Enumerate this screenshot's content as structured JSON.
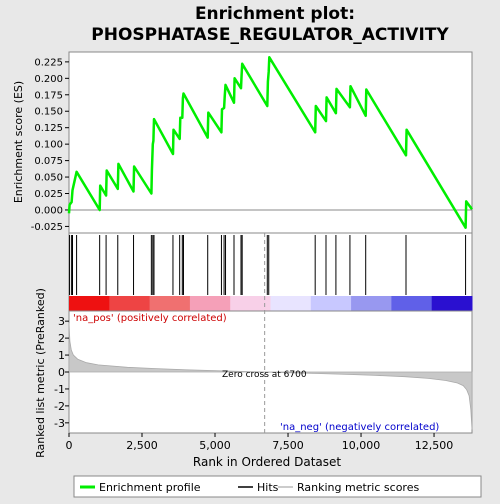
{
  "chart_data": {
    "type": "line",
    "title": "Enrichment plot:",
    "subtitle": "PHOSPHATASE_REGULATOR_ACTIVITY",
    "top_panel": {
      "ylabel": "Enrichment score (ES)",
      "ylim": [
        -0.035,
        0.24
      ],
      "yticks": [
        -0.025,
        0.0,
        0.025,
        0.05,
        0.075,
        0.1,
        0.125,
        0.15,
        0.175,
        0.2,
        0.225
      ],
      "ytick_labels": [
        "-0.025",
        "0.000",
        "0.025",
        "0.050",
        "0.075",
        "0.100",
        "0.125",
        "0.150",
        "0.175",
        "0.200",
        "0.225"
      ],
      "series": [
        {
          "name": "Enrichment profile",
          "color": "#00ee00",
          "x": [
            0,
            20,
            90,
            120,
            260,
            1050,
            1070,
            1270,
            1290,
            1670,
            1690,
            2210,
            2230,
            2820,
            2840,
            2870,
            2890,
            2910,
            3560,
            3580,
            3790,
            3810,
            3880,
            3900,
            3920,
            4750,
            4770,
            5220,
            5240,
            5310,
            5330,
            5360,
            5650,
            5670,
            5890,
            5910,
            5930,
            6790,
            6810,
            6840,
            6860,
            8430,
            8450,
            8800,
            8820,
            9140,
            9160,
            9620,
            9640,
            10160,
            10180,
            11540,
            11560,
            13580,
            13600,
            13800
          ],
          "y": [
            -0.005,
            0.008,
            0.012,
            0.03,
            0.058,
            0.0,
            0.037,
            0.022,
            0.06,
            0.032,
            0.07,
            0.028,
            0.066,
            0.025,
            0.06,
            0.1,
            0.105,
            0.138,
            0.085,
            0.122,
            0.108,
            0.14,
            0.14,
            0.17,
            0.177,
            0.11,
            0.148,
            0.118,
            0.153,
            0.155,
            0.172,
            0.19,
            0.163,
            0.2,
            0.185,
            0.205,
            0.222,
            0.158,
            0.195,
            0.21,
            0.232,
            0.118,
            0.158,
            0.135,
            0.171,
            0.147,
            0.184,
            0.156,
            0.188,
            0.143,
            0.183,
            0.083,
            0.122,
            -0.027,
            0.013,
            0.001
          ]
        }
      ],
      "zero_line": 0.0
    },
    "hits_panel": {
      "hit_positions": [
        20,
        90,
        120,
        260,
        1050,
        1270,
        1670,
        2210,
        2820,
        2870,
        2910,
        3560,
        3790,
        3880,
        3920,
        4750,
        5220,
        5310,
        5360,
        5650,
        5890,
        5930,
        6790,
        6840,
        8430,
        8800,
        9140,
        9620,
        10160,
        11540,
        13580
      ]
    },
    "bottom_panel": {
      "xlabel": "Rank in Ordered Dataset",
      "ylabel": "Ranked list metric (PreRanked)",
      "xlim": [
        0,
        13800
      ],
      "xticks": [
        0,
        2500,
        5000,
        7500,
        10000,
        12500
      ],
      "xtick_labels": [
        "0",
        "2,500",
        "5,000",
        "7,500",
        "10,000",
        "12,500"
      ],
      "ylim": [
        -3.6,
        3.6
      ],
      "yticks": [
        -3,
        -2,
        -1,
        0,
        1,
        2,
        3
      ],
      "ytick_labels": [
        "-3",
        "-2",
        "-1",
        "0",
        "1",
        "2",
        "3"
      ],
      "metric_x": [
        0,
        30,
        80,
        150,
        300,
        600,
        1000,
        2000,
        3000,
        4000,
        5000,
        6000,
        6700,
        7500,
        8500,
        9500,
        10500,
        11500,
        12300,
        12900,
        13300,
        13500,
        13620,
        13700,
        13760,
        13800
      ],
      "metric_y": [
        2.9,
        1.8,
        1.3,
        1.0,
        0.75,
        0.55,
        0.42,
        0.28,
        0.2,
        0.13,
        0.08,
        0.03,
        0.0,
        -0.04,
        -0.09,
        -0.14,
        -0.2,
        -0.28,
        -0.38,
        -0.5,
        -0.65,
        -0.8,
        -1.05,
        -1.4,
        -2.2,
        -3.4
      ],
      "annotations": {
        "pos_label": "'na_pos' (positively correlated)",
        "neg_label": "'na_neg' (negatively correlated)",
        "zero_cross": "Zero cross at 6700"
      },
      "zero_cross_rank": 6700
    },
    "legend": {
      "items": [
        "Enrichment profile",
        "Hits",
        "Ranking metric scores"
      ],
      "colors": [
        "#00ee00",
        "#000000",
        "#bbbbbb"
      ]
    },
    "colorbar": {
      "colors": [
        "#ee1111",
        "#ee4444",
        "#f07070",
        "#f5a0b8",
        "#f8d0e8",
        "#e8e4ff",
        "#c8c8ff",
        "#9898f0",
        "#6060e8",
        "#2a10d0"
      ]
    }
  }
}
